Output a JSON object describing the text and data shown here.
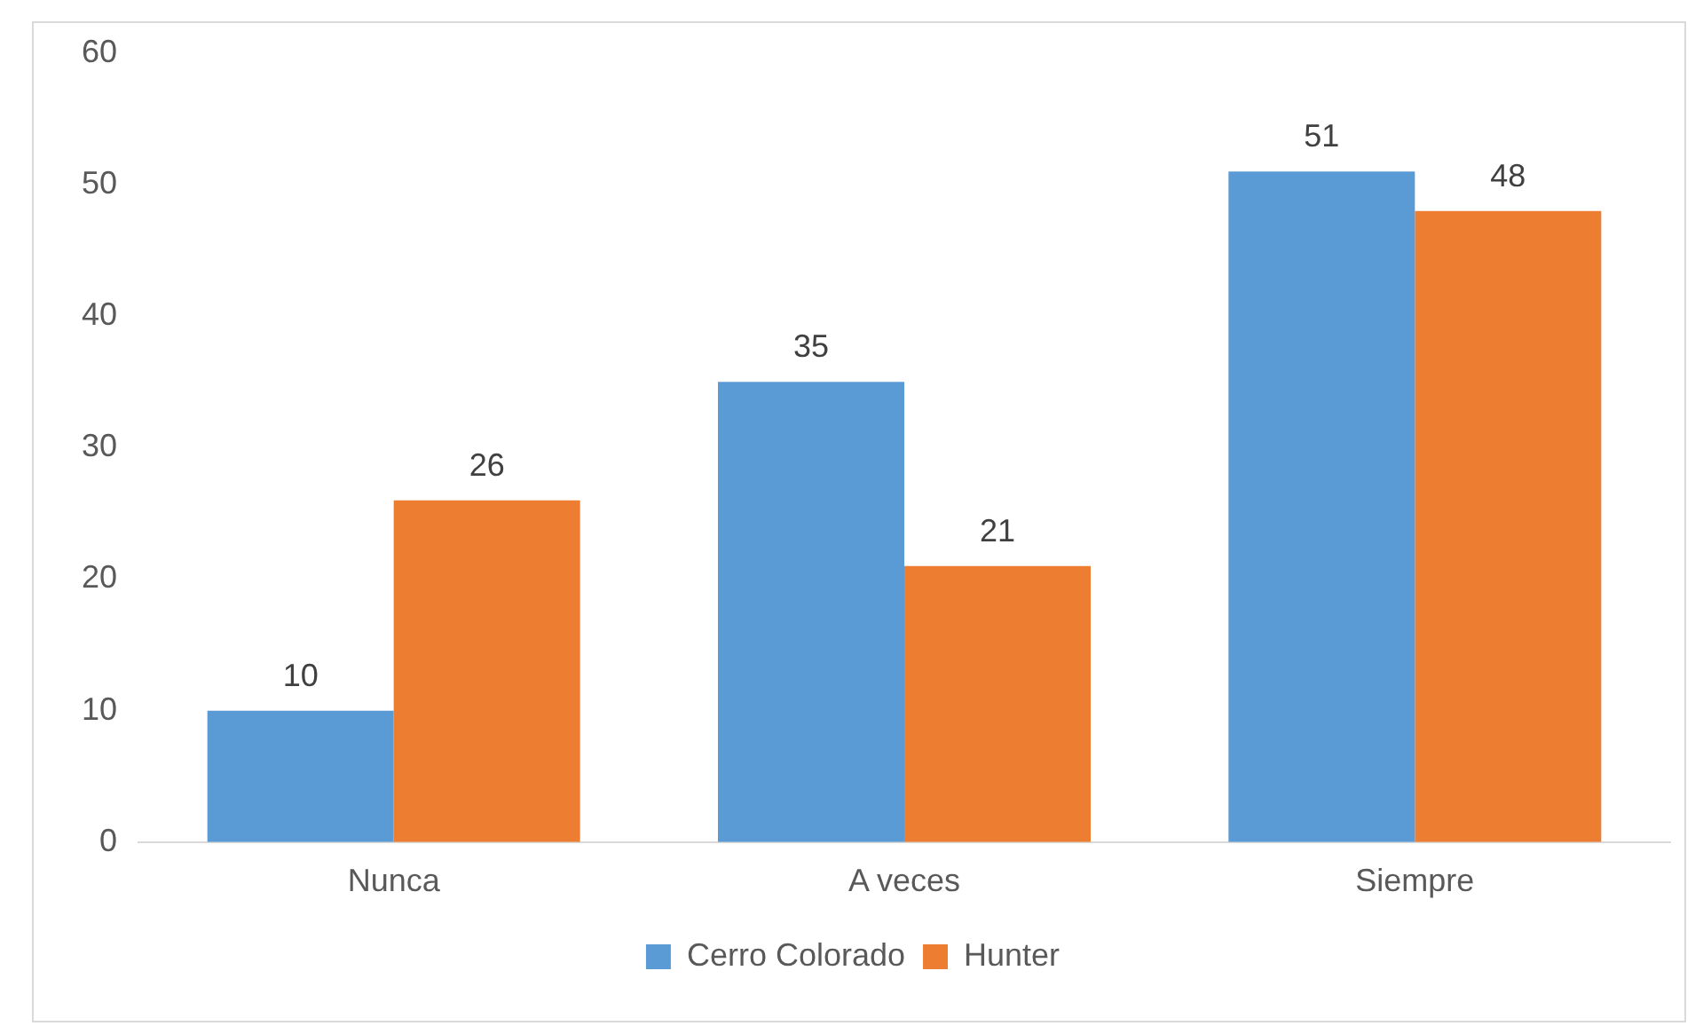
{
  "chart_data": {
    "type": "bar",
    "categories": [
      "Nunca",
      "A veces",
      "Siempre"
    ],
    "series": [
      {
        "name": "Cerro Colorado",
        "color": "#5b9bd5",
        "values": [
          10,
          35,
          51
        ]
      },
      {
        "name": "Hunter",
        "color": "#ed7d31",
        "values": [
          26,
          21,
          48
        ]
      }
    ],
    "ylim": [
      0,
      60
    ],
    "yticks": [
      0,
      10,
      20,
      30,
      40,
      50,
      60
    ],
    "grid": false,
    "legend": "bottom",
    "data_labels": true
  }
}
